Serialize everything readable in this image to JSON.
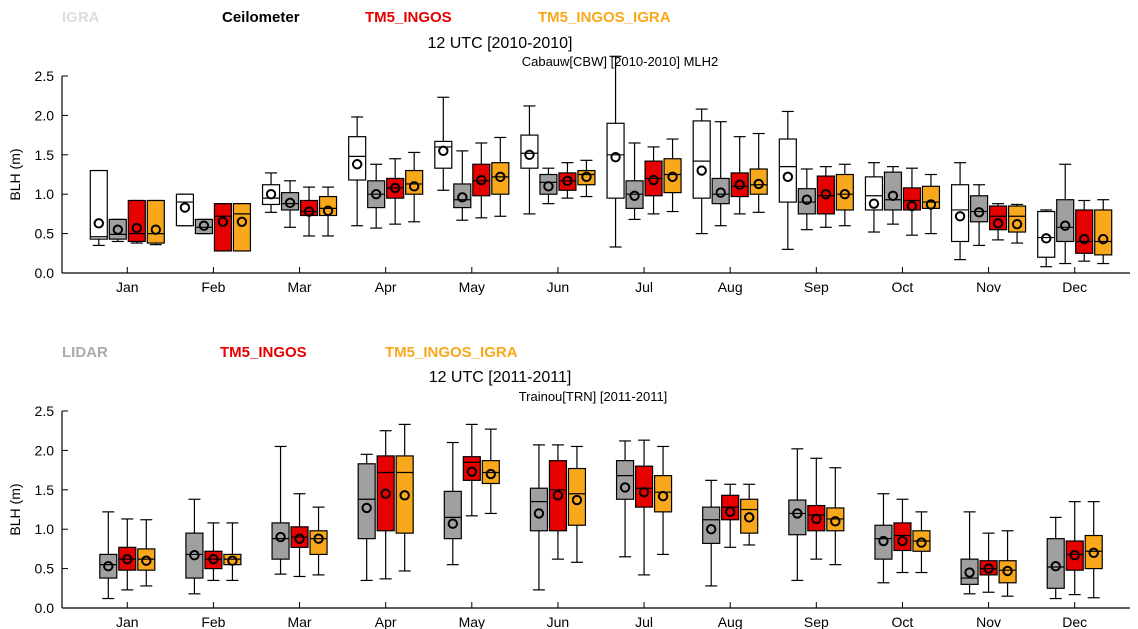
{
  "chart_data": [
    {
      "type": "box",
      "legend": [
        "IGRA",
        "Ceilometer",
        "TM5_INGOS",
        "TM5_INGOS_IGRA"
      ],
      "series": [
        {
          "name": "IGRA",
          "color": "#ffffff",
          "legend_color": "#dddddd"
        },
        {
          "name": "Ceilometer",
          "color": "#a0a0a0",
          "legend_color": "#000000"
        },
        {
          "name": "TM5_INGOS",
          "color": "#e60000",
          "legend_color": "#e60000"
        },
        {
          "name": "TM5_INGOS_IGRA",
          "color": "#f8a81a",
          "legend_color": "#f8a81a"
        }
      ],
      "title": "12 UTC  [2010-2010]",
      "subtitle": "Cabauw[CBW] [2010-2010]  MLH2",
      "ylabel": "BLH (m)",
      "ylim": [
        0,
        2.5
      ],
      "yticks": [
        "0.0",
        "0.5",
        "1.0",
        "1.5",
        "2.0",
        "2.5"
      ],
      "categories": [
        "Jan",
        "Feb",
        "Mar",
        "Apr",
        "May",
        "Jun",
        "Jul",
        "Aug",
        "Sep",
        "Oct",
        "Nov",
        "Dec"
      ],
      "boxes": [
        [
          [
            0.35,
            0.43,
            0.46,
            1.3,
            1.3,
            0.63
          ],
          [
            0.4,
            0.43,
            0.49,
            0.68,
            0.68,
            0.55
          ],
          [
            0.38,
            0.4,
            0.5,
            0.92,
            0.92,
            0.57
          ],
          [
            0.36,
            0.38,
            0.5,
            0.92,
            0.92,
            0.55
          ]
        ],
        [
          [
            0.6,
            0.6,
            0.9,
            1.0,
            1.0,
            0.83
          ],
          [
            0.5,
            0.5,
            0.58,
            0.68,
            0.68,
            0.6
          ],
          [
            0.28,
            0.28,
            0.72,
            0.88,
            0.88,
            0.65
          ],
          [
            0.28,
            0.28,
            0.75,
            0.88,
            0.88,
            0.65
          ]
        ],
        [
          [
            0.77,
            0.87,
            0.95,
            1.12,
            1.27,
            1.0
          ],
          [
            0.58,
            0.8,
            0.88,
            1.02,
            1.17,
            0.89
          ],
          [
            0.47,
            0.73,
            0.78,
            0.92,
            1.09,
            0.78
          ],
          [
            0.47,
            0.73,
            0.82,
            0.97,
            1.09,
            0.79
          ]
        ],
        [
          [
            0.6,
            1.18,
            1.48,
            1.73,
            1.98,
            1.38
          ],
          [
            0.57,
            0.83,
            1.0,
            1.17,
            1.38,
            1.0
          ],
          [
            0.62,
            0.95,
            1.08,
            1.2,
            1.45,
            1.08
          ],
          [
            0.65,
            1.0,
            1.13,
            1.3,
            1.53,
            1.1
          ]
        ],
        [
          [
            1.05,
            1.33,
            1.6,
            1.67,
            2.23,
            1.55
          ],
          [
            0.67,
            0.83,
            0.93,
            1.13,
            1.55,
            0.96
          ],
          [
            0.7,
            0.98,
            1.17,
            1.38,
            1.65,
            1.18
          ],
          [
            0.72,
            1.0,
            1.22,
            1.4,
            1.72,
            1.22
          ]
        ],
        [
          [
            0.75,
            1.33,
            1.52,
            1.75,
            2.12,
            1.5
          ],
          [
            0.88,
            1.0,
            1.15,
            1.25,
            1.33,
            1.1
          ],
          [
            0.95,
            1.05,
            1.17,
            1.27,
            1.4,
            1.17
          ],
          [
            0.97,
            1.12,
            1.25,
            1.3,
            1.43,
            1.22
          ]
        ],
        [
          [
            0.33,
            0.95,
            1.5,
            1.9,
            2.75,
            1.47
          ],
          [
            0.68,
            0.82,
            1.0,
            1.17,
            1.65,
            0.98
          ],
          [
            0.75,
            0.98,
            1.2,
            1.42,
            1.6,
            1.18
          ],
          [
            0.78,
            1.02,
            1.25,
            1.45,
            1.7,
            1.22
          ]
        ],
        [
          [
            0.5,
            0.95,
            1.42,
            1.93,
            2.08,
            1.3
          ],
          [
            0.6,
            0.88,
            1.0,
            1.2,
            1.92,
            1.02
          ],
          [
            0.75,
            0.97,
            1.1,
            1.27,
            1.73,
            1.12
          ],
          [
            0.77,
            1.0,
            1.12,
            1.32,
            1.77,
            1.13
          ]
        ],
        [
          [
            0.3,
            0.9,
            1.35,
            1.7,
            2.05,
            1.22
          ],
          [
            0.55,
            0.75,
            0.9,
            1.07,
            1.32,
            0.93
          ],
          [
            0.58,
            0.75,
            0.98,
            1.23,
            1.35,
            1.0
          ],
          [
            0.6,
            0.8,
            1.0,
            1.25,
            1.38,
            1.0
          ]
        ],
        [
          [
            0.52,
            0.8,
            0.98,
            1.22,
            1.4,
            0.88
          ],
          [
            0.62,
            0.8,
            0.93,
            1.28,
            1.35,
            0.98
          ],
          [
            0.48,
            0.8,
            0.92,
            1.08,
            1.33,
            0.85
          ],
          [
            0.5,
            0.82,
            0.9,
            1.1,
            1.25,
            0.87
          ]
        ],
        [
          [
            0.17,
            0.4,
            0.8,
            1.12,
            1.4,
            0.72
          ],
          [
            0.35,
            0.65,
            0.78,
            0.98,
            1.12,
            0.77
          ],
          [
            0.42,
            0.55,
            0.72,
            0.85,
            0.88,
            0.63
          ],
          [
            0.38,
            0.52,
            0.72,
            0.85,
            0.87,
            0.62
          ]
        ],
        [
          [
            0.08,
            0.2,
            0.45,
            0.78,
            0.8,
            0.44
          ],
          [
            0.12,
            0.4,
            0.58,
            0.93,
            1.38,
            0.6
          ],
          [
            0.15,
            0.25,
            0.4,
            0.8,
            0.92,
            0.43
          ],
          [
            0.12,
            0.23,
            0.4,
            0.8,
            0.93,
            0.43
          ]
        ]
      ]
    },
    {
      "type": "box",
      "legend": [
        "LIDAR",
        "TM5_INGOS",
        "TM5_INGOS_IGRA"
      ],
      "series": [
        {
          "name": "LIDAR",
          "color": "#a0a0a0",
          "legend_color": "#aaaaaa"
        },
        {
          "name": "TM5_INGOS",
          "color": "#e60000",
          "legend_color": "#e60000"
        },
        {
          "name": "TM5_INGOS_IGRA",
          "color": "#f8a81a",
          "legend_color": "#f8a81a"
        }
      ],
      "title": "12 UTC  [2011-2011]",
      "subtitle": "Trainou[TRN] [2011-2011]",
      "ylabel": "BLH (m)",
      "ylim": [
        0,
        2.5
      ],
      "yticks": [
        "0.0",
        "0.5",
        "1.0",
        "1.5",
        "2.0",
        "2.5"
      ],
      "categories": [
        "Jan",
        "Feb",
        "Mar",
        "Apr",
        "May",
        "Jun",
        "Jul",
        "Aug",
        "Sep",
        "Oct",
        "Nov",
        "Dec"
      ],
      "boxes": [
        [
          [
            0.12,
            0.38,
            0.55,
            0.68,
            1.22,
            0.53
          ],
          [
            0.23,
            0.48,
            0.62,
            0.77,
            1.13,
            0.62
          ],
          [
            0.28,
            0.48,
            0.62,
            0.75,
            1.12,
            0.6
          ]
        ],
        [
          [
            0.18,
            0.38,
            0.68,
            0.95,
            1.38,
            0.67
          ],
          [
            0.35,
            0.5,
            0.62,
            0.72,
            1.08,
            0.62
          ],
          [
            0.35,
            0.55,
            0.62,
            0.68,
            1.08,
            0.6
          ]
        ],
        [
          [
            0.43,
            0.62,
            0.88,
            1.08,
            2.05,
            0.9
          ],
          [
            0.4,
            0.77,
            0.9,
            1.03,
            1.45,
            0.88
          ],
          [
            0.42,
            0.68,
            0.88,
            0.98,
            1.28,
            0.88
          ]
        ],
        [
          [
            0.35,
            0.88,
            1.38,
            1.83,
            1.95,
            1.27
          ],
          [
            0.37,
            0.98,
            1.72,
            1.93,
            2.25,
            1.45
          ],
          [
            0.47,
            0.95,
            1.72,
            1.93,
            2.33,
            1.43
          ]
        ],
        [
          [
            0.55,
            0.88,
            1.15,
            1.48,
            2.1,
            1.07
          ],
          [
            1.17,
            1.62,
            1.85,
            1.92,
            2.33,
            1.73
          ],
          [
            1.2,
            1.58,
            1.72,
            1.87,
            2.27,
            1.7
          ]
        ],
        [
          [
            0.23,
            0.98,
            1.35,
            1.52,
            2.07,
            1.2
          ],
          [
            0.62,
            0.98,
            1.5,
            1.87,
            2.07,
            1.43
          ],
          [
            0.58,
            1.05,
            1.45,
            1.77,
            2.05,
            1.37
          ]
        ],
        [
          [
            0.65,
            1.38,
            1.68,
            1.87,
            2.12,
            1.53
          ],
          [
            0.42,
            1.28,
            1.52,
            1.8,
            2.13,
            1.47
          ],
          [
            0.68,
            1.22,
            1.47,
            1.68,
            2.05,
            1.42
          ]
        ],
        [
          [
            0.28,
            0.82,
            1.12,
            1.28,
            1.62,
            1.0
          ],
          [
            0.77,
            1.12,
            1.28,
            1.43,
            1.57,
            1.22
          ],
          [
            0.8,
            0.95,
            1.25,
            1.38,
            1.57,
            1.15
          ]
        ],
        [
          [
            0.35,
            0.93,
            1.2,
            1.37,
            2.02,
            1.2
          ],
          [
            0.62,
            0.98,
            1.18,
            1.3,
            1.9,
            1.13
          ],
          [
            0.55,
            0.98,
            1.13,
            1.27,
            1.78,
            1.1
          ]
        ],
        [
          [
            0.32,
            0.62,
            0.88,
            1.05,
            1.45,
            0.85
          ],
          [
            0.45,
            0.73,
            0.92,
            1.08,
            1.38,
            0.85
          ],
          [
            0.45,
            0.72,
            0.85,
            0.98,
            1.22,
            0.83
          ]
        ],
        [
          [
            0.18,
            0.3,
            0.38,
            0.62,
            1.22,
            0.45
          ],
          [
            0.2,
            0.42,
            0.5,
            0.6,
            0.95,
            0.5
          ],
          [
            0.15,
            0.32,
            0.48,
            0.6,
            0.98,
            0.47
          ]
        ],
        [
          [
            0.12,
            0.25,
            0.52,
            0.88,
            1.15,
            0.53
          ],
          [
            0.17,
            0.48,
            0.68,
            0.85,
            1.35,
            0.67
          ],
          [
            0.13,
            0.5,
            0.72,
            0.92,
            1.35,
            0.7
          ]
        ]
      ]
    }
  ]
}
